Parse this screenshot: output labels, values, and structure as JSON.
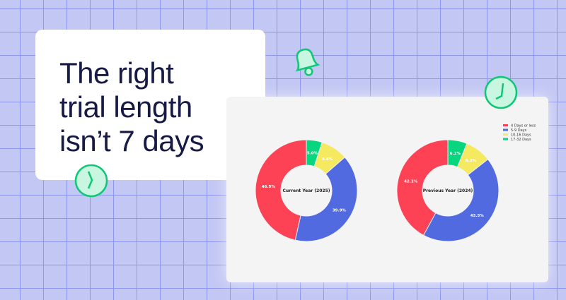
{
  "headline": {
    "line1": "The right",
    "line2": "trial length",
    "line3": "isn’t 7 days"
  },
  "icons": [
    "bell-icon",
    "clock-icon",
    "clock-icon"
  ],
  "chart_data": [
    {
      "type": "pie",
      "donut": true,
      "title": "Current Year (2025)",
      "categories": [
        "4 Days or less",
        "5-9 Days",
        "10-16 Days",
        "17-32 Days"
      ],
      "values": [
        46.5,
        39.9,
        8.6,
        5.0
      ],
      "labels": [
        "46.5%",
        "39.9%",
        "8.6%",
        "5.0%"
      ]
    },
    {
      "type": "pie",
      "donut": true,
      "title": "Previous Year (2024)",
      "categories": [
        "4 Days or less",
        "5-9 Days",
        "10-16 Days",
        "17-32 Days"
      ],
      "values": [
        42.1,
        43.5,
        8.3,
        6.1
      ],
      "labels": [
        "42.1%",
        "43.5%",
        "8.3%",
        "6.1%"
      ]
    }
  ],
  "legend": {
    "placement": "top-right",
    "items": [
      "4 Days or less",
      "5-9 Days",
      "10-16 Days",
      "17-32 Days"
    ]
  },
  "colors": [
    "#fe4256",
    "#516ae0",
    "#f5e960",
    "#08d67e"
  ]
}
